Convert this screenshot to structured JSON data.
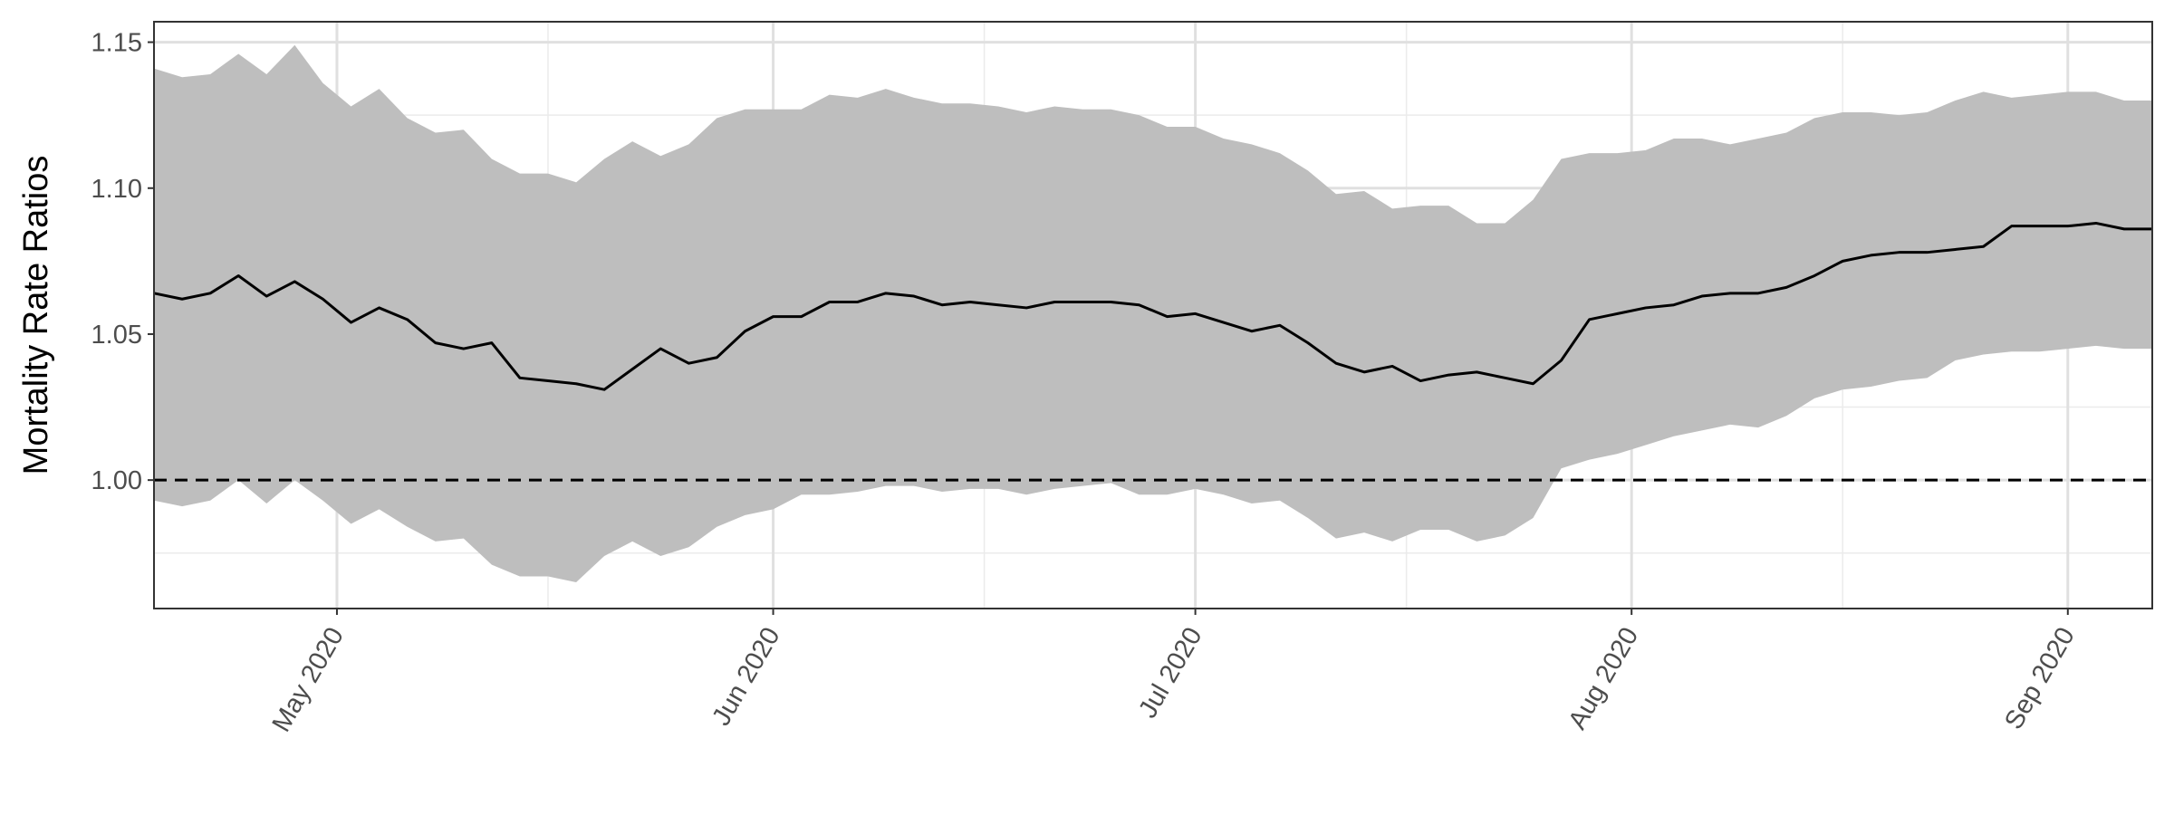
{
  "chart_data": {
    "type": "line",
    "y_label": "Mortality Rate Ratios",
    "x": [
      -13,
      -11,
      -9,
      -7,
      -5,
      -3,
      -1,
      1,
      3,
      5,
      7,
      9,
      11,
      13,
      15,
      17,
      19,
      21,
      23,
      25,
      27,
      29,
      31,
      33,
      35,
      37,
      39,
      41,
      43,
      45,
      47,
      49,
      51,
      53,
      55,
      57,
      59,
      61,
      63,
      65,
      67,
      69,
      71,
      73,
      75,
      77,
      79,
      81,
      83,
      85,
      87,
      89,
      91,
      93,
      95,
      97,
      99,
      101,
      103,
      105,
      107,
      109,
      111,
      113,
      115,
      117,
      119,
      121,
      123,
      125,
      127,
      129
    ],
    "series": [
      {
        "color": "#000000",
        "band_color": "#bebebe",
        "values": [
          1.064,
          1.062,
          1.064,
          1.07,
          1.063,
          1.068,
          1.062,
          1.054,
          1.059,
          1.055,
          1.047,
          1.045,
          1.047,
          1.035,
          1.034,
          1.033,
          1.031,
          1.038,
          1.045,
          1.04,
          1.042,
          1.051,
          1.056,
          1.056,
          1.061,
          1.061,
          1.064,
          1.063,
          1.06,
          1.061,
          1.06,
          1.059,
          1.061,
          1.061,
          1.061,
          1.06,
          1.056,
          1.057,
          1.054,
          1.051,
          1.053,
          1.047,
          1.04,
          1.037,
          1.039,
          1.034,
          1.036,
          1.037,
          1.035,
          1.033,
          1.041,
          1.055,
          1.057,
          1.059,
          1.06,
          1.063,
          1.064,
          1.064,
          1.066,
          1.07,
          1.075,
          1.077,
          1.078,
          1.078,
          1.079,
          1.08,
          1.087,
          1.087,
          1.087,
          1.088,
          1.086,
          1.086
        ],
        "upper": [
          1.141,
          1.138,
          1.139,
          1.146,
          1.139,
          1.149,
          1.136,
          1.128,
          1.134,
          1.124,
          1.119,
          1.12,
          1.11,
          1.105,
          1.105,
          1.102,
          1.11,
          1.116,
          1.111,
          1.115,
          1.124,
          1.127,
          1.127,
          1.127,
          1.132,
          1.131,
          1.134,
          1.131,
          1.129,
          1.129,
          1.128,
          1.126,
          1.128,
          1.127,
          1.127,
          1.125,
          1.121,
          1.121,
          1.117,
          1.115,
          1.112,
          1.106,
          1.098,
          1.099,
          1.093,
          1.094,
          1.094,
          1.088,
          1.088,
          1.096,
          1.11,
          1.112,
          1.112,
          1.113,
          1.117,
          1.117,
          1.115,
          1.117,
          1.119,
          1.124,
          1.126,
          1.126,
          1.125,
          1.126,
          1.13,
          1.133,
          1.131,
          1.132,
          1.133,
          1.133,
          1.13,
          1.13
        ],
        "lower": [
          0.993,
          0.991,
          0.993,
          1.0,
          0.992,
          1.0,
          0.993,
          0.985,
          0.99,
          0.984,
          0.979,
          0.98,
          0.971,
          0.967,
          0.967,
          0.965,
          0.974,
          0.979,
          0.974,
          0.977,
          0.984,
          0.988,
          0.99,
          0.995,
          0.995,
          0.996,
          0.998,
          0.998,
          0.996,
          0.997,
          0.997,
          0.995,
          0.997,
          0.998,
          0.999,
          0.995,
          0.995,
          0.997,
          0.995,
          0.992,
          0.993,
          0.987,
          0.98,
          0.982,
          0.979,
          0.983,
          0.983,
          0.979,
          0.981,
          0.987,
          1.004,
          1.007,
          1.009,
          1.012,
          1.015,
          1.017,
          1.019,
          1.018,
          1.022,
          1.028,
          1.031,
          1.032,
          1.034,
          1.035,
          1.041,
          1.043,
          1.044,
          1.044,
          1.045,
          1.046,
          1.045,
          1.045
        ]
      }
    ],
    "hline": {
      "value": 1,
      "color": "#000000",
      "dashed": true
    },
    "xlim": [
      -13,
      129
    ],
    "xticks": [
      {
        "value": 0,
        "label": "May 2020"
      },
      {
        "value": 31,
        "label": "Jun 2020"
      },
      {
        "value": 61,
        "label": "Jul 2020"
      },
      {
        "value": 92,
        "label": "Aug 2020"
      },
      {
        "value": 123,
        "label": "Sep 2020"
      }
    ],
    "minor_xticks": [
      15,
      46,
      76,
      107
    ],
    "ylim": [
      0.956,
      1.157
    ],
    "yticks": [
      {
        "value": 1,
        "label": "1.00"
      },
      1.05,
      {
        "value": 1.1,
        "label": "1.10"
      },
      1.15
    ],
    "minor_yticks": [
      0.975,
      1.025,
      1.075,
      1.125
    ],
    "grid": true
  }
}
